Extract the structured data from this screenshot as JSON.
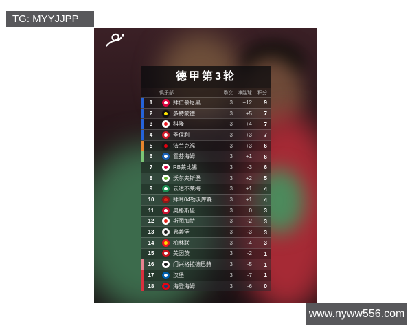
{
  "watermarks": {
    "tg": "TG: MYYJJPP",
    "site": "www.nyww556.com"
  },
  "logo": {
    "name": "bundesliga-logo"
  },
  "chart_data": {
    "type": "table",
    "title": "德甲第3轮",
    "header_labels": {
      "club": "俱乐部",
      "played": "场次",
      "gd": "净胜球",
      "points": "积分"
    },
    "zone_colors": {
      "ucl": "#2563d9",
      "uel": "#e8862e",
      "uecl": "#7cc576",
      "playoff": "#e78290",
      "relegation": "#d9303e",
      "none": "transparent"
    },
    "rows": [
      {
        "rank": "1",
        "team": "拜仁慕尼黑",
        "played": "3",
        "gd": "+12",
        "points": "9",
        "zone": "ucl",
        "crest": [
          "#dd0741",
          "#ffffff"
        ]
      },
      {
        "rank": "2",
        "team": "多特蒙德",
        "played": "3",
        "gd": "+5",
        "points": "7",
        "zone": "ucl",
        "crest": [
          "#111111",
          "#ffe600"
        ]
      },
      {
        "rank": "3",
        "team": "科隆",
        "played": "3",
        "gd": "+4",
        "points": "7",
        "zone": "ucl",
        "crest": [
          "#ffffff",
          "#ed1c24"
        ]
      },
      {
        "rank": "4",
        "team": "圣保利",
        "played": "3",
        "gd": "+3",
        "points": "7",
        "zone": "ucl",
        "crest": [
          "#d21a2b",
          "#ffffff"
        ]
      },
      {
        "rank": "5",
        "team": "法兰克福",
        "played": "3",
        "gd": "+3",
        "points": "6",
        "zone": "uel",
        "crest": [
          "#1a1a1a",
          "#e1000f"
        ]
      },
      {
        "rank": "6",
        "team": "霍芬海姆",
        "played": "3",
        "gd": "+1",
        "points": "6",
        "zone": "uecl",
        "crest": [
          "#1961b5",
          "#ffffff"
        ]
      },
      {
        "rank": "7",
        "team": "RB莱比锡",
        "played": "3",
        "gd": "-3",
        "points": "6",
        "zone": "none",
        "crest": [
          "#ffffff",
          "#dd013f"
        ]
      },
      {
        "rank": "8",
        "team": "沃尔夫斯堡",
        "played": "3",
        "gd": "+2",
        "points": "5",
        "zone": "none",
        "crest": [
          "#ffffff",
          "#65b32e"
        ]
      },
      {
        "rank": "9",
        "team": "云达不莱梅",
        "played": "3",
        "gd": "+1",
        "points": "4",
        "zone": "none",
        "crest": [
          "#1d9053",
          "#ffffff"
        ]
      },
      {
        "rank": "10",
        "team": "拜耳04勒沃库森",
        "played": "3",
        "gd": "+1",
        "points": "4",
        "zone": "none",
        "crest": [
          "#8a1a1a",
          "#e32219"
        ]
      },
      {
        "rank": "11",
        "team": "奥格斯堡",
        "played": "3",
        "gd": "0",
        "points": "3",
        "zone": "none",
        "crest": [
          "#c8102e",
          "#ffffff"
        ]
      },
      {
        "rank": "12",
        "team": "斯图加特",
        "played": "3",
        "gd": "-2",
        "points": "3",
        "zone": "none",
        "crest": [
          "#ffffff",
          "#e32219"
        ]
      },
      {
        "rank": "13",
        "team": "弗赖堡",
        "played": "3",
        "gd": "-3",
        "points": "3",
        "zone": "none",
        "crest": [
          "#f5f5f5",
          "#1a1a1a"
        ]
      },
      {
        "rank": "14",
        "team": "柏林联",
        "played": "3",
        "gd": "-4",
        "points": "3",
        "zone": "none",
        "crest": [
          "#eb1923",
          "#ffdd00"
        ]
      },
      {
        "rank": "15",
        "team": "美因茨",
        "played": "3",
        "gd": "-2",
        "points": "1",
        "zone": "none",
        "crest": [
          "#c3141e",
          "#ffffff"
        ]
      },
      {
        "rank": "16",
        "team": "门兴格拉德巴赫",
        "played": "3",
        "gd": "-5",
        "points": "1",
        "zone": "playoff",
        "crest": [
          "#ffffff",
          "#1a1a1a"
        ]
      },
      {
        "rank": "17",
        "team": "汉堡",
        "played": "3",
        "gd": "-7",
        "points": "1",
        "zone": "relegation",
        "crest": [
          "#0060ac",
          "#ffffff"
        ]
      },
      {
        "rank": "18",
        "team": "海登海姆",
        "played": "3",
        "gd": "-6",
        "points": "0",
        "zone": "relegation",
        "crest": [
          "#e30613",
          "#12407a"
        ]
      }
    ]
  }
}
